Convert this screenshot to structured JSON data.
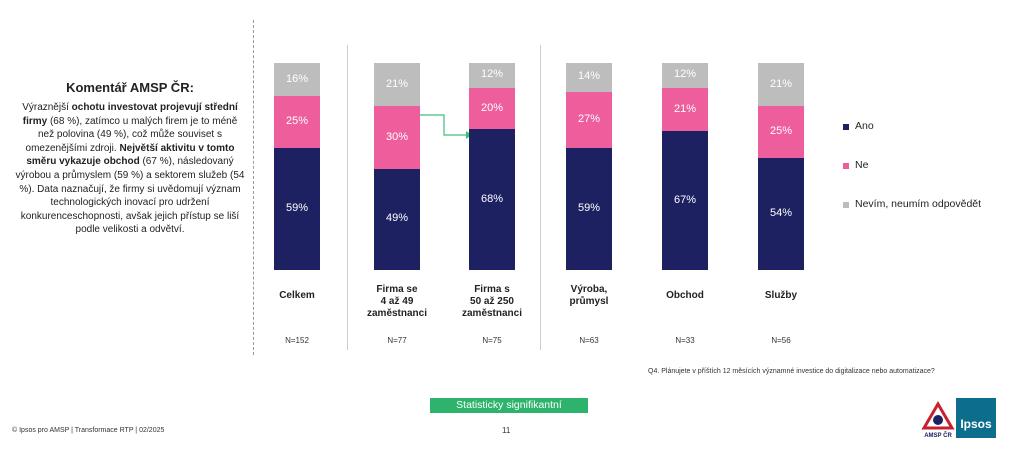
{
  "chart_data": {
    "type": "stacked_bar",
    "categories": [
      "Celkem",
      "Firma se\n4 až 49\nzaměstnanci",
      "Firma s\n50 až 250\nzaměstnanci",
      "Výroba,\nprůmysl",
      "Obchod",
      "Služby"
    ],
    "sample_sizes": [
      "N=152",
      "N=77",
      "N=75",
      "N=63",
      "N=33",
      "N=56"
    ],
    "ylim": [
      0,
      100
    ],
    "series": [
      {
        "name": "Ano",
        "color": "#1e2161",
        "values": [
          59,
          49,
          68,
          59,
          67,
          54
        ],
        "value_labels": [
          "59%",
          "49%",
          "68%",
          "59%",
          "67%",
          "54%"
        ]
      },
      {
        "name": "Ne",
        "color": "#ee5e9c",
        "values": [
          25,
          30,
          20,
          27,
          21,
          25
        ],
        "value_labels": [
          "25%",
          "30%",
          "20%",
          "27%",
          "21%",
          "25%"
        ]
      },
      {
        "name": "Nevím, neumím odpovědět",
        "color": "#bdbdbd",
        "values": [
          16,
          21,
          12,
          14,
          12,
          21
        ],
        "value_labels": [
          "16%",
          "21%",
          "12%",
          "14%",
          "12%",
          "21%"
        ]
      }
    ],
    "question": "Q4. Plánujete v příštích 12 měsících významné investice do digitalizace nebo automatizace?",
    "significance_note": "Statisticky signifikantní"
  },
  "commentary": {
    "title": "Komentář AMSP ČR:",
    "runs": [
      {
        "text": "Výraznější ",
        "bold": false
      },
      {
        "text": "ochotu investovat projevují střední firmy",
        "bold": true
      },
      {
        "text": " (68 %), zatímco u malých firem je to méně než polovina (49 %), což může souviset s omezenějšími zdroji. ",
        "bold": false
      },
      {
        "text": "Největší aktivitu v tomto směru vykazuje obchod",
        "bold": true
      },
      {
        "text": " (67 %), následovaný výrobou a průmyslem (59 %) a sektorem služeb (54 %). Data naznačují, že firmy si uvědomují význam technologických inovací pro udržení konkurenceschopnosti, avšak jejich přístup se liší podle velikosti a odvětví.",
        "bold": false
      }
    ]
  },
  "footer": {
    "source": "© Ipsos pro AMSP | Transformace RTP | 02/2025",
    "page": "11",
    "logo_amsp": "AMSP ČR",
    "logo_ipsos": "Ipsos"
  }
}
